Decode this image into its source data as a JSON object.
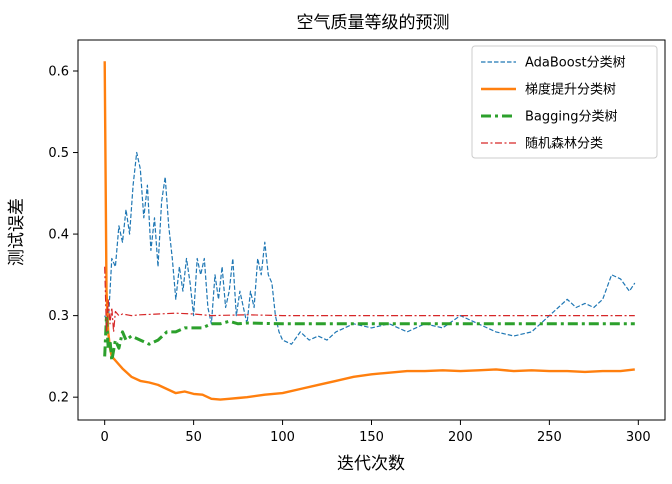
{
  "chart_data": {
    "type": "line",
    "title": "空气质量等级的预测",
    "xlabel": "迭代次数",
    "ylabel": "测试误差",
    "xlim": [
      -15,
      315
    ],
    "ylim": [
      0.172,
      0.638
    ],
    "xticks": [
      0,
      50,
      100,
      150,
      200,
      250,
      300
    ],
    "xtick_labels": [
      "0",
      "50",
      "100",
      "150",
      "200",
      "250",
      "300"
    ],
    "yticks": [
      0.2,
      0.3,
      0.4,
      0.5,
      0.6
    ],
    "ytick_labels": [
      "0.2",
      "0.3",
      "0.4",
      "0.5",
      "0.6"
    ],
    "grid": false,
    "legend_position": "top-right",
    "series": [
      {
        "name": "AdaBoost分类树",
        "color": "#1f77b4",
        "style": "dashed",
        "x": [
          0,
          2,
          4,
          6,
          8,
          10,
          12,
          14,
          16,
          18,
          20,
          22,
          24,
          26,
          28,
          30,
          32,
          34,
          36,
          38,
          40,
          42,
          44,
          46,
          48,
          50,
          52,
          54,
          56,
          58,
          60,
          62,
          64,
          66,
          68,
          70,
          72,
          74,
          76,
          78,
          80,
          82,
          84,
          86,
          88,
          90,
          92,
          94,
          96,
          98,
          100,
          105,
          110,
          115,
          120,
          125,
          130,
          140,
          150,
          160,
          170,
          180,
          190,
          200,
          210,
          220,
          230,
          240,
          250,
          255,
          260,
          265,
          270,
          275,
          280,
          285,
          290,
          295,
          298
        ],
        "values": [
          0.3,
          0.29,
          0.37,
          0.36,
          0.41,
          0.39,
          0.43,
          0.4,
          0.46,
          0.5,
          0.48,
          0.42,
          0.46,
          0.38,
          0.42,
          0.36,
          0.44,
          0.47,
          0.41,
          0.37,
          0.32,
          0.36,
          0.33,
          0.37,
          0.34,
          0.3,
          0.37,
          0.35,
          0.37,
          0.31,
          0.29,
          0.35,
          0.32,
          0.36,
          0.31,
          0.33,
          0.37,
          0.3,
          0.33,
          0.31,
          0.29,
          0.33,
          0.31,
          0.37,
          0.35,
          0.39,
          0.35,
          0.34,
          0.3,
          0.28,
          0.27,
          0.265,
          0.28,
          0.27,
          0.275,
          0.27,
          0.28,
          0.29,
          0.285,
          0.29,
          0.28,
          0.29,
          0.285,
          0.3,
          0.29,
          0.28,
          0.275,
          0.28,
          0.3,
          0.31,
          0.32,
          0.31,
          0.315,
          0.31,
          0.32,
          0.35,
          0.345,
          0.33,
          0.34
        ]
      },
      {
        "name": "梯度提升分类树",
        "color": "#ff7f0e",
        "style": "solid",
        "x": [
          0,
          1,
          2,
          3,
          4,
          6,
          8,
          10,
          15,
          20,
          25,
          30,
          35,
          40,
          45,
          50,
          55,
          60,
          65,
          70,
          75,
          80,
          90,
          100,
          110,
          120,
          130,
          140,
          150,
          160,
          170,
          180,
          190,
          200,
          210,
          220,
          230,
          240,
          250,
          260,
          270,
          280,
          290,
          298
        ],
        "values": [
          0.612,
          0.33,
          0.28,
          0.26,
          0.25,
          0.245,
          0.24,
          0.235,
          0.225,
          0.22,
          0.218,
          0.215,
          0.21,
          0.205,
          0.207,
          0.204,
          0.203,
          0.198,
          0.197,
          0.198,
          0.199,
          0.2,
          0.203,
          0.205,
          0.21,
          0.215,
          0.22,
          0.225,
          0.228,
          0.23,
          0.232,
          0.232,
          0.233,
          0.232,
          0.233,
          0.234,
          0.232,
          0.233,
          0.232,
          0.232,
          0.231,
          0.232,
          0.232,
          0.234
        ]
      },
      {
        "name": "Bagging分类树",
        "color": "#2ca02c",
        "style": "dashdot",
        "x": [
          0,
          1,
          2,
          3,
          4,
          6,
          8,
          10,
          12,
          15,
          20,
          25,
          30,
          35,
          40,
          45,
          50,
          55,
          60,
          65,
          70,
          75,
          80,
          100,
          150,
          200,
          250,
          298
        ],
        "values": [
          0.25,
          0.3,
          0.26,
          0.27,
          0.245,
          0.27,
          0.26,
          0.28,
          0.27,
          0.275,
          0.27,
          0.265,
          0.27,
          0.28,
          0.28,
          0.285,
          0.285,
          0.285,
          0.29,
          0.29,
          0.293,
          0.29,
          0.291,
          0.29,
          0.29,
          0.29,
          0.29,
          0.29
        ]
      },
      {
        "name": "随机森林分类",
        "color": "#d62728",
        "style": "dashdot-thin",
        "x": [
          0,
          1,
          2,
          3,
          4,
          5,
          6,
          8,
          10,
          15,
          20,
          30,
          40,
          50,
          60,
          80,
          100,
          150,
          200,
          250,
          298
        ],
        "values": [
          0.36,
          0.28,
          0.32,
          0.29,
          0.31,
          0.28,
          0.305,
          0.3,
          0.302,
          0.3,
          0.301,
          0.302,
          0.303,
          0.302,
          0.3,
          0.301,
          0.3,
          0.3,
          0.3,
          0.3,
          0.3
        ]
      }
    ]
  }
}
